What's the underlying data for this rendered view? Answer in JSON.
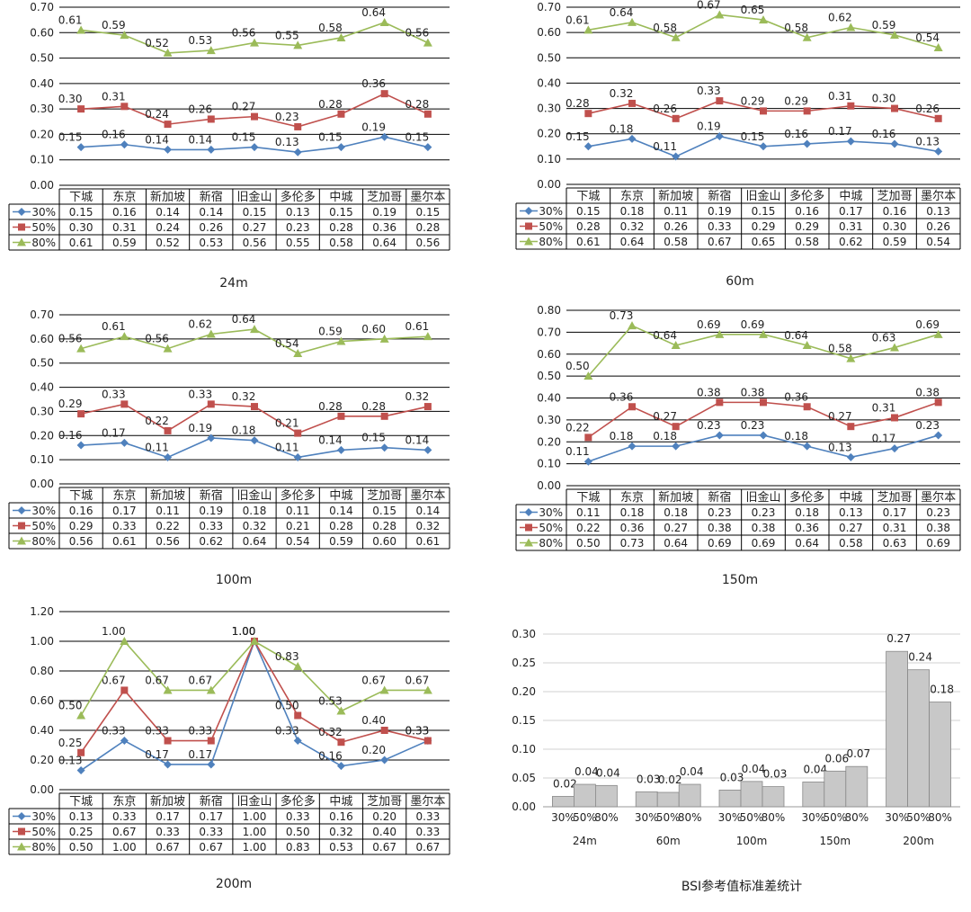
{
  "colors": {
    "s30": "#4f81bd",
    "s50": "#c0504d",
    "s80": "#9bbb59",
    "bar": "#c8c8c8",
    "bar_stroke": "#888888",
    "grid": "#000000"
  },
  "chart_data": [
    {
      "type": "line",
      "title": "24m",
      "categories": [
        "下城",
        "东京",
        "新加坡",
        "新宿",
        "旧金山",
        "多伦多",
        "中城",
        "芝加哥",
        "墨尔本"
      ],
      "y_ticks": [
        "0.00",
        "0.10",
        "0.20",
        "0.30",
        "0.40",
        "0.50",
        "0.60",
        "0.70"
      ],
      "ylim": [
        0,
        0.7
      ],
      "series": [
        {
          "name": "30%",
          "values": [
            "0.15",
            "0.16",
            "0.14",
            "0.14",
            "0.15",
            "0.13",
            "0.15",
            "0.19",
            "0.15"
          ]
        },
        {
          "name": "50%",
          "values": [
            "0.30",
            "0.31",
            "0.24",
            "0.26",
            "0.27",
            "0.23",
            "0.28",
            "0.36",
            "0.28"
          ]
        },
        {
          "name": "80%",
          "values": [
            "0.61",
            "0.59",
            "0.52",
            "0.53",
            "0.56",
            "0.55",
            "0.58",
            "0.64",
            "0.56"
          ]
        }
      ]
    },
    {
      "type": "line",
      "title": "60m",
      "categories": [
        "下城",
        "东京",
        "新加坡",
        "新宿",
        "旧金山",
        "多伦多",
        "中城",
        "芝加哥",
        "墨尔本"
      ],
      "y_ticks": [
        "0.00",
        "0.10",
        "0.20",
        "0.30",
        "0.40",
        "0.50",
        "0.60",
        "0.70"
      ],
      "ylim": [
        0,
        0.7
      ],
      "series": [
        {
          "name": "30%",
          "values": [
            "0.15",
            "0.18",
            "0.11",
            "0.19",
            "0.15",
            "0.16",
            "0.17",
            "0.16",
            "0.13"
          ]
        },
        {
          "name": "50%",
          "values": [
            "0.28",
            "0.32",
            "0.26",
            "0.33",
            "0.29",
            "0.29",
            "0.31",
            "0.30",
            "0.26"
          ]
        },
        {
          "name": "80%",
          "values": [
            "0.61",
            "0.64",
            "0.58",
            "0.67",
            "0.65",
            "0.58",
            "0.62",
            "0.59",
            "0.54"
          ]
        }
      ]
    },
    {
      "type": "line",
      "title": "100m",
      "categories": [
        "下城",
        "东京",
        "新加坡",
        "新宿",
        "旧金山",
        "多伦多",
        "中城",
        "芝加哥",
        "墨尔本"
      ],
      "y_ticks": [
        "0.00",
        "0.10",
        "0.20",
        "0.30",
        "0.40",
        "0.50",
        "0.60",
        "0.70"
      ],
      "ylim": [
        0,
        0.7
      ],
      "series": [
        {
          "name": "30%",
          "values": [
            "0.16",
            "0.17",
            "0.11",
            "0.19",
            "0.18",
            "0.11",
            "0.14",
            "0.15",
            "0.14"
          ]
        },
        {
          "name": "50%",
          "values": [
            "0.29",
            "0.33",
            "0.22",
            "0.33",
            "0.32",
            "0.21",
            "0.28",
            "0.28",
            "0.32"
          ]
        },
        {
          "name": "80%",
          "values": [
            "0.56",
            "0.61",
            "0.56",
            "0.62",
            "0.64",
            "0.54",
            "0.59",
            "0.60",
            "0.61"
          ]
        }
      ]
    },
    {
      "type": "line",
      "title": "150m",
      "categories": [
        "下城",
        "东京",
        "新加坡",
        "新宿",
        "旧金山",
        "多伦多",
        "中城",
        "芝加哥",
        "墨尔本"
      ],
      "y_ticks": [
        "0.00",
        "0.10",
        "0.20",
        "0.30",
        "0.40",
        "0.50",
        "0.60",
        "0.70",
        "0.80"
      ],
      "ylim": [
        0,
        0.8
      ],
      "series": [
        {
          "name": "30%",
          "values": [
            "0.11",
            "0.18",
            "0.18",
            "0.23",
            "0.23",
            "0.18",
            "0.13",
            "0.17",
            "0.23"
          ]
        },
        {
          "name": "50%",
          "values": [
            "0.22",
            "0.36",
            "0.27",
            "0.38",
            "0.38",
            "0.36",
            "0.27",
            "0.31",
            "0.38"
          ]
        },
        {
          "name": "80%",
          "values": [
            "0.50",
            "0.73",
            "0.64",
            "0.69",
            "0.69",
            "0.64",
            "0.58",
            "0.63",
            "0.69"
          ]
        }
      ]
    },
    {
      "type": "line",
      "title": "200m",
      "categories": [
        "下城",
        "东京",
        "新加坡",
        "新宿",
        "旧金山",
        "多伦多",
        "中城",
        "芝加哥",
        "墨尔本"
      ],
      "y_ticks": [
        "0.00",
        "0.20",
        "0.40",
        "0.60",
        "0.80",
        "1.00",
        "1.20"
      ],
      "ylim": [
        0,
        1.2
      ],
      "series": [
        {
          "name": "30%",
          "values": [
            "0.13",
            "0.33",
            "0.17",
            "0.17",
            "1.00",
            "0.33",
            "0.16",
            "0.20",
            "0.33"
          ]
        },
        {
          "name": "50%",
          "values": [
            "0.25",
            "0.67",
            "0.33",
            "0.33",
            "1.00",
            "0.50",
            "0.32",
            "0.40",
            "0.33"
          ]
        },
        {
          "name": "80%",
          "values": [
            "0.50",
            "1.00",
            "0.67",
            "0.67",
            "1.00",
            "0.83",
            "0.53",
            "0.67",
            "0.67"
          ]
        }
      ]
    },
    {
      "type": "bar",
      "title": "BSI参考值标准差统计",
      "groups": [
        "24m",
        "60m",
        "100m",
        "150m",
        "200m"
      ],
      "sub_labels": [
        "30%",
        "50%",
        "80%"
      ],
      "y_ticks": [
        "0.00",
        "0.05",
        "0.10",
        "0.15",
        "0.20",
        "0.25",
        "0.30"
      ],
      "ylim": [
        0,
        0.3
      ],
      "values": [
        {
          "true": [
            0.018,
            0.039,
            0.037
          ],
          "labels": [
            "0.02",
            "0.04",
            "0.04"
          ]
        },
        {
          "true": [
            0.026,
            0.025,
            0.039
          ],
          "labels": [
            "0.03",
            "0.02",
            "0.04"
          ]
        },
        {
          "true": [
            0.029,
            0.044,
            0.035
          ],
          "labels": [
            "0.03",
            "0.04",
            "0.03"
          ]
        },
        {
          "true": [
            0.043,
            0.062,
            0.07
          ],
          "labels": [
            "0.04",
            "0.06",
            "0.07"
          ]
        },
        {
          "true": [
            0.27,
            0.238,
            0.182
          ],
          "labels": [
            "0.27",
            "0.24",
            "0.18"
          ]
        }
      ]
    }
  ]
}
